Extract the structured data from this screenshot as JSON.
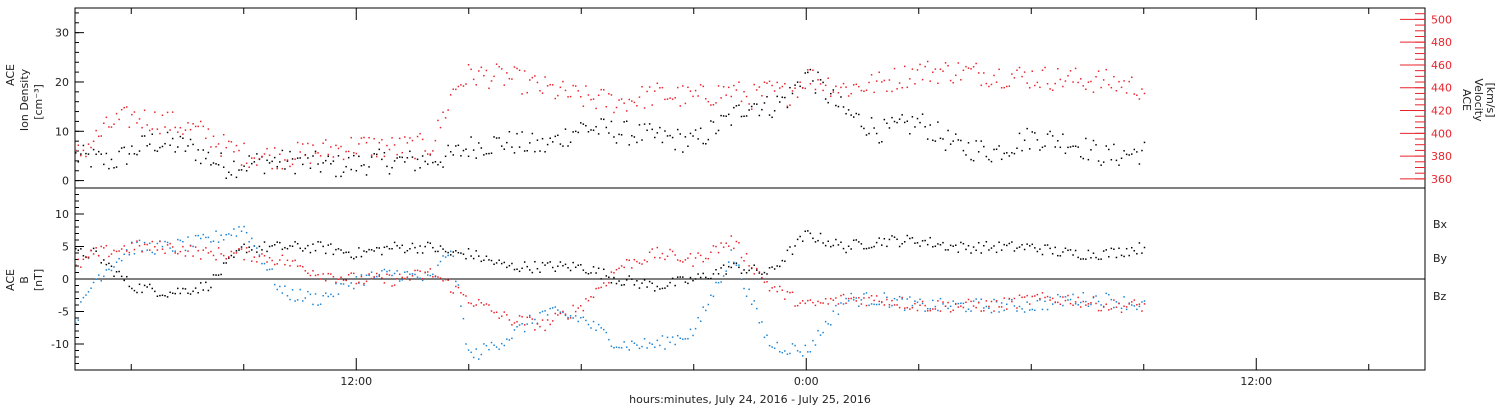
{
  "chart_data": [
    {
      "type": "scatter",
      "panel": "top",
      "left_axis_title": [
        "ACE",
        "Ion Density",
        "[cm⁻³]"
      ],
      "right_axis_title": [
        "ACE",
        "Velocity",
        "[km/s]"
      ],
      "x_unit": "hours since 2016-07-24 00:00",
      "xlim": [
        4.5,
        40.5
      ],
      "ylim_left": [
        -1.5,
        35
      ],
      "ylim_left_ticks": [
        0,
        10,
        20,
        30
      ],
      "ylim_right": [
        352,
        510
      ],
      "ylim_right_ticks": [
        360,
        380,
        400,
        420,
        440,
        460,
        480,
        500
      ],
      "series": [
        {
          "name": "",
          "color": "#000000",
          "axis": "left",
          "x": [
            4.5,
            5.5,
            6.5,
            7.5,
            8.5,
            9.5,
            10.5,
            11.5,
            12.5,
            13.5,
            14.5,
            15.0,
            16.0,
            17.0,
            18.0,
            19.0,
            20.0,
            21.0,
            22.0,
            22.5,
            23.0,
            23.5,
            24.0,
            25.0,
            26.0,
            27.0,
            28.0,
            29.0,
            30.0,
            31.0,
            32.0,
            33.0
          ],
          "y": [
            5,
            4,
            8,
            7,
            3,
            4,
            4,
            3,
            4,
            4,
            5,
            7,
            8,
            7,
            11,
            10,
            9,
            8,
            13,
            16,
            15,
            17,
            22,
            14,
            10,
            12,
            7,
            6,
            9,
            8,
            5,
            6
          ]
        },
        {
          "name": "",
          "color": "#e8242c",
          "axis": "right",
          "x": [
            4.5,
            5.5,
            6.0,
            7.0,
            8.0,
            8.5,
            9.0,
            10.0,
            11.0,
            12.0,
            13.0,
            14.0,
            14.6,
            15.0,
            16.0,
            17.0,
            18.0,
            19.0,
            20.0,
            21.0,
            22.0,
            22.5,
            23.0,
            23.5,
            24.0,
            25.0,
            26.0,
            27.0,
            28.0,
            29.0,
            30.0,
            31.0,
            32.0,
            33.0
          ],
          "y": [
            380,
            410,
            415,
            410,
            400,
            388,
            382,
            380,
            385,
            390,
            388,
            390,
            440,
            452,
            450,
            440,
            432,
            428,
            435,
            432,
            438,
            432,
            438,
            435,
            450,
            440,
            445,
            455,
            455,
            452,
            450,
            448,
            446,
            440
          ]
        }
      ]
    },
    {
      "type": "scatter",
      "panel": "bottom",
      "left_axis_title": [
        "ACE",
        "B",
        "[nT]"
      ],
      "xlim": [
        4.5,
        40.5
      ],
      "ylim": [
        -14,
        14
      ],
      "yticks": [
        -10,
        -5,
        0,
        5,
        10
      ],
      "zero_line": true,
      "legend": [
        "Bx",
        "By",
        "Bz"
      ],
      "series": [
        {
          "name": "Bx",
          "color": "#000000",
          "x": [
            4.5,
            5.0,
            6.0,
            7.0,
            8.0,
            9.0,
            10.0,
            11.0,
            12.0,
            13.0,
            14.0,
            14.5,
            15.0,
            16.0,
            17.0,
            18.0,
            19.0,
            20.0,
            21.0,
            22.0,
            23.0,
            24.0,
            25.0,
            26.0,
            27.0,
            28.0,
            29.0,
            30.0,
            31.0,
            32.0,
            33.0
          ],
          "y": [
            4,
            4,
            -1,
            -2,
            -1,
            5,
            5,
            5,
            4,
            5,
            5,
            4,
            4,
            2,
            2,
            2,
            0,
            -1,
            0,
            2,
            1,
            7,
            5,
            6,
            6,
            5,
            5,
            5,
            4,
            4,
            5
          ]
        },
        {
          "name": "By",
          "color": "#1e84d2",
          "x": [
            4.5,
            5.0,
            6.0,
            7.0,
            8.0,
            9.0,
            10.0,
            11.0,
            12.0,
            13.0,
            14.0,
            14.5,
            15.0,
            16.0,
            17.0,
            18.0,
            19.0,
            20.0,
            21.0,
            22.0,
            23.0,
            24.0,
            25.0,
            26.0,
            27.0,
            28.0,
            29.0,
            30.0,
            31.0,
            32.0,
            33.0
          ],
          "y": [
            -6,
            0,
            5,
            5,
            6,
            8,
            -2,
            -3,
            0,
            1,
            0,
            5,
            -12,
            -9,
            -5,
            -6,
            -10,
            -10,
            -8,
            4,
            -10,
            -11,
            -3,
            -3,
            -4,
            -4,
            -4,
            -4,
            -3,
            -3,
            -4
          ]
        },
        {
          "name": "Bz",
          "color": "#e8242c",
          "x": [
            4.5,
            5.0,
            6.0,
            7.0,
            8.0,
            9.0,
            10.0,
            11.0,
            12.0,
            13.0,
            14.0,
            14.5,
            15.0,
            16.0,
            17.0,
            18.0,
            19.0,
            20.0,
            21.0,
            22.0,
            23.0,
            24.0,
            25.0,
            26.0,
            27.0,
            28.0,
            29.0,
            30.0,
            31.0,
            32.0,
            33.0
          ],
          "y": [
            2,
            4,
            5,
            5,
            4,
            4,
            3,
            1,
            0,
            0,
            1,
            -1,
            -3,
            -6,
            -7,
            -4,
            2,
            4,
            3,
            6,
            -1,
            -4,
            -3,
            -3,
            -4,
            -4,
            -4,
            -3,
            -3,
            -4,
            -4
          ]
        }
      ]
    }
  ],
  "x_axis": {
    "tick_labels": [
      {
        "value": 12,
        "label": "12:00"
      },
      {
        "value": 24,
        "label": "0:00"
      },
      {
        "value": 36,
        "label": "12:00"
      }
    ],
    "minor_ticks": [
      6,
      9,
      15,
      18,
      21,
      27,
      30,
      33,
      39
    ],
    "title": "hours:minutes, July 24, 2016 - July 25, 2016"
  },
  "legend_labels": {
    "bx": "Bx",
    "by": "By",
    "bz": "Bz"
  },
  "colors": {
    "black": "#000000",
    "red": "#e8242c",
    "blue": "#1e84d2"
  }
}
